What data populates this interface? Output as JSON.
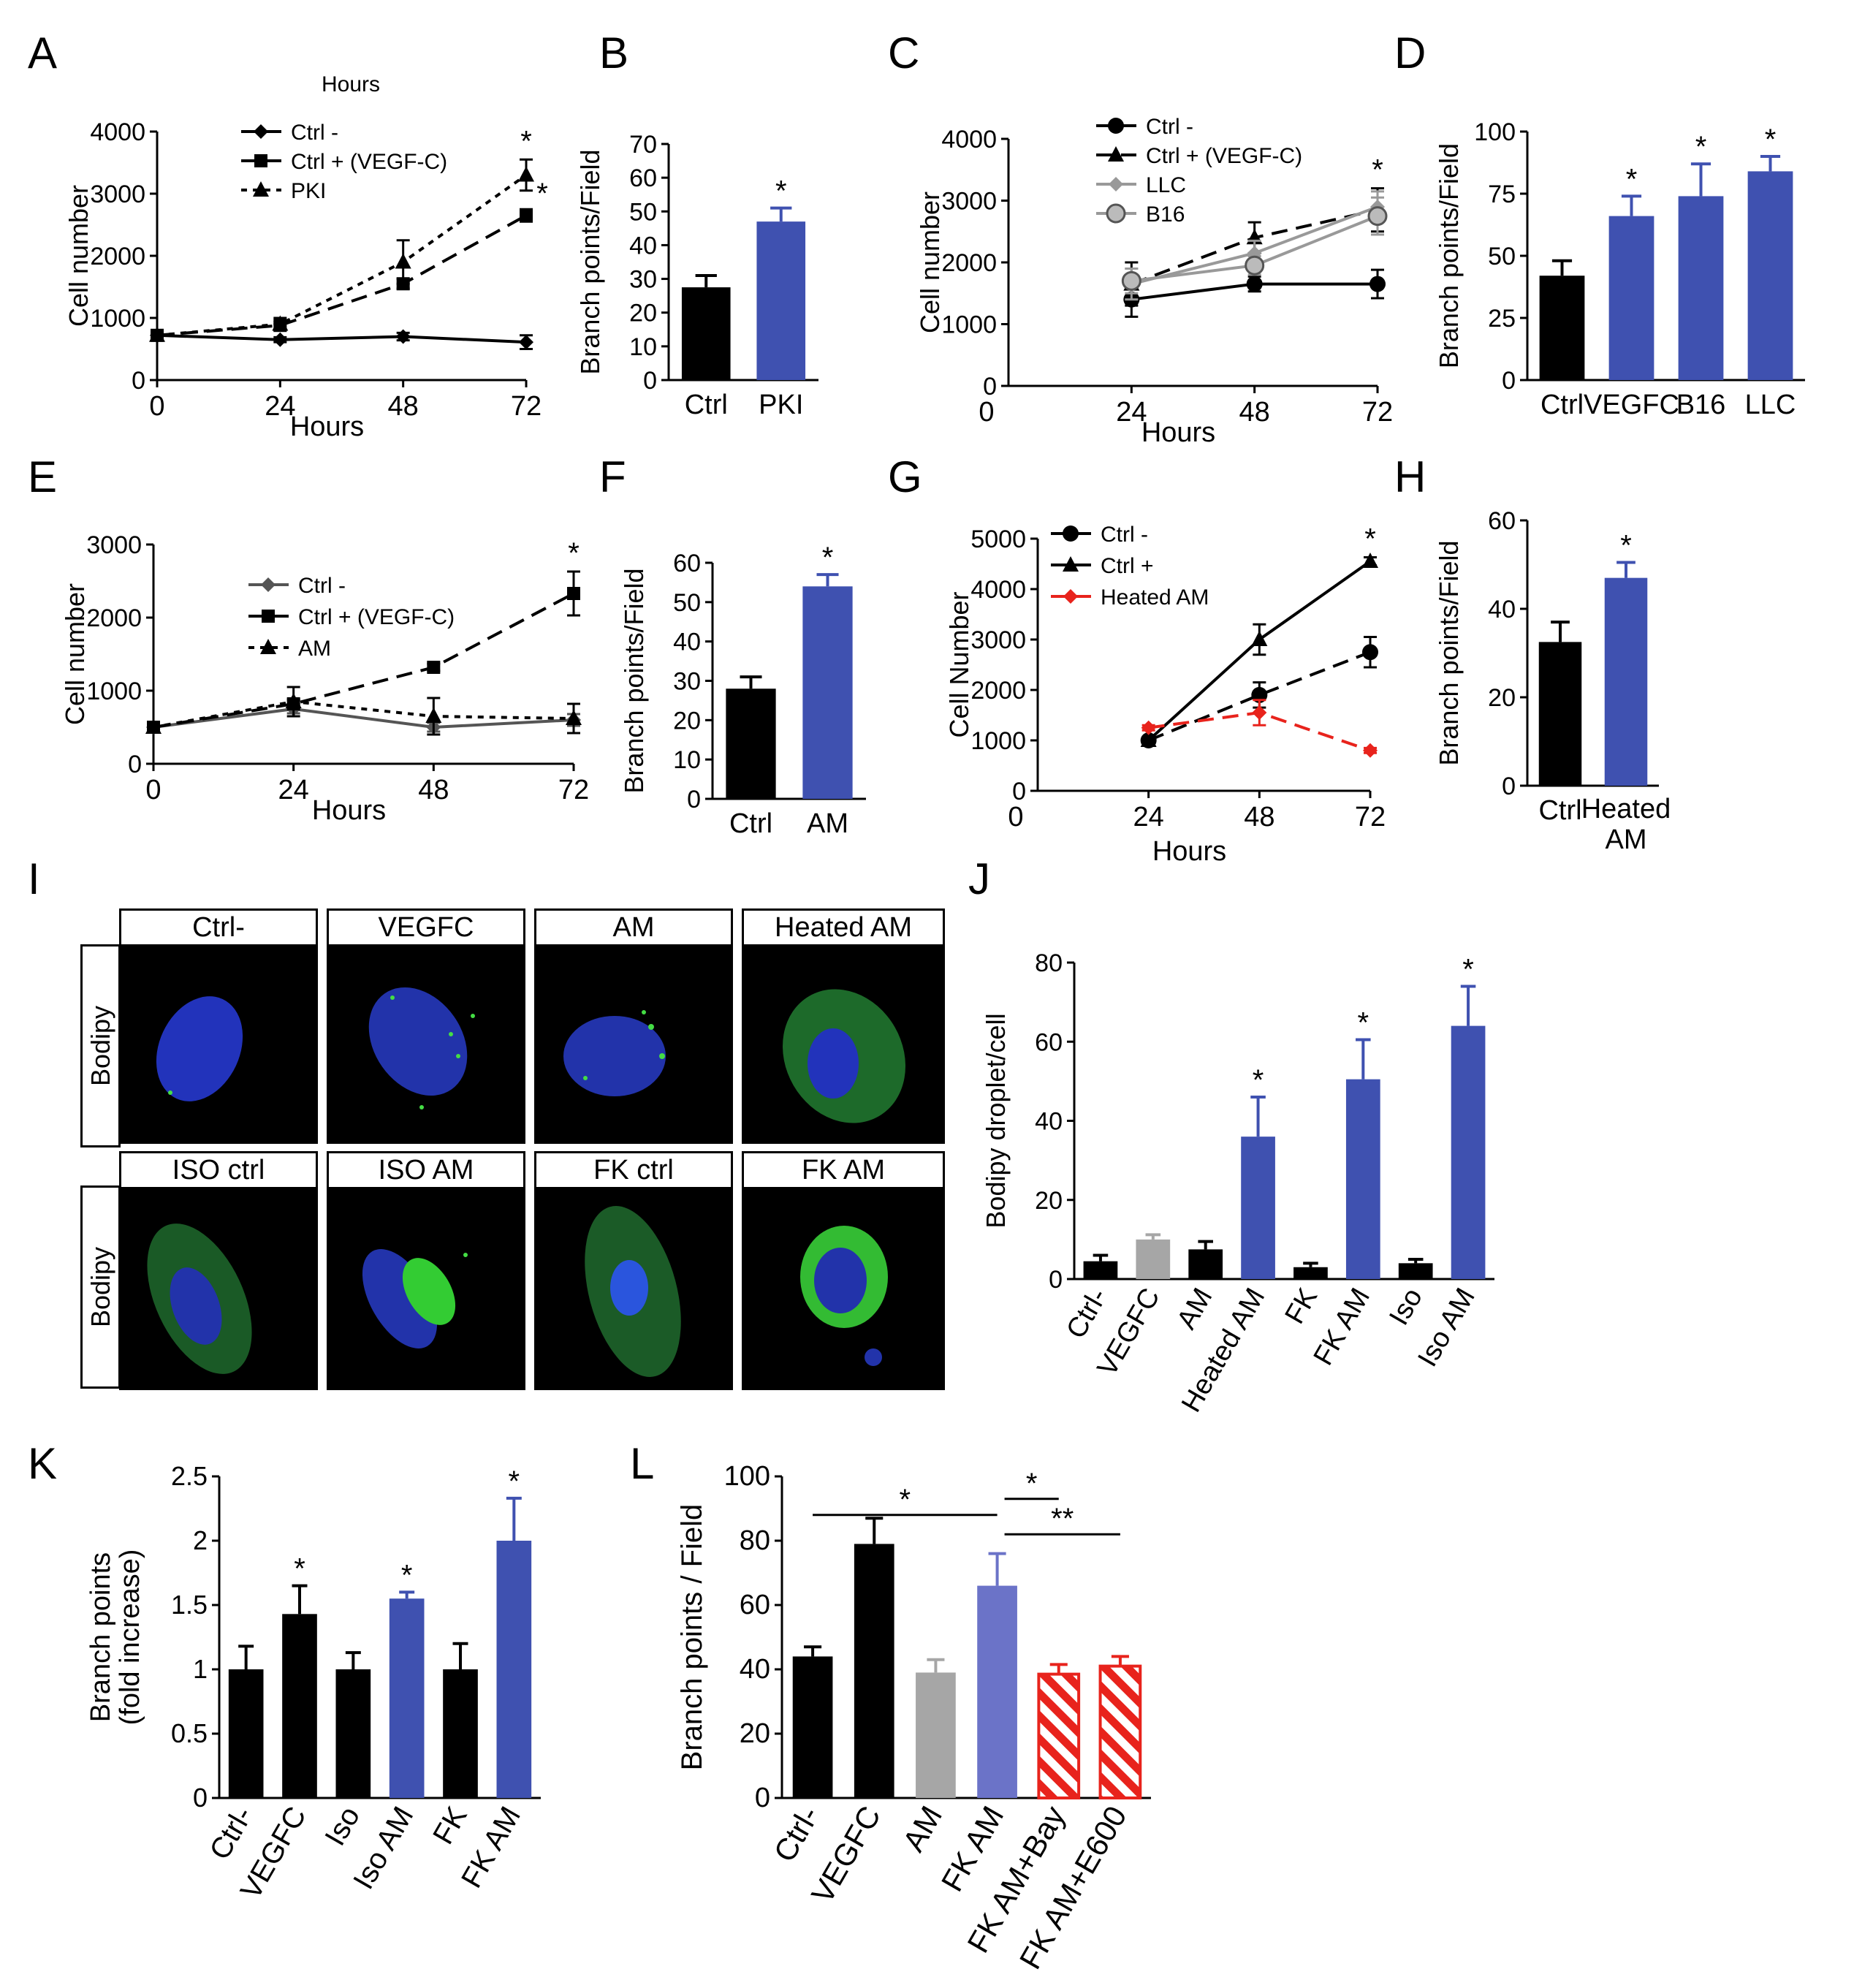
{
  "panel_letters": [
    "A",
    "B",
    "C",
    "D",
    "E",
    "F",
    "G",
    "H",
    "I",
    "J",
    "K",
    "L"
  ],
  "chart_data": [
    {
      "id": "A",
      "type": "line",
      "title": "Hours",
      "xlabel": "Hours",
      "ylabel": "Cell number",
      "x": [
        0,
        24,
        48,
        72
      ],
      "xlim": [
        0,
        72
      ],
      "ylim": [
        0,
        4000
      ],
      "yticks": [
        0,
        1000,
        2000,
        3000,
        4000
      ],
      "legend": "top-left",
      "series": [
        {
          "name": "Ctrl -",
          "values": [
            720,
            650,
            700,
            610
          ],
          "err": [
            40,
            40,
            60,
            110
          ],
          "marker": "diamond",
          "dash": "solid"
        },
        {
          "name": "Ctrl + (VEGF-C)",
          "values": [
            720,
            880,
            1550,
            2650
          ],
          "err": [
            40,
            60,
            80,
            100
          ],
          "marker": "square",
          "dash": "long"
        },
        {
          "name": "PKI",
          "values": [
            720,
            900,
            1900,
            3300
          ],
          "err": [
            40,
            100,
            350,
            250
          ],
          "marker": "triangle",
          "dash": "short"
        }
      ],
      "annotations": [
        "*",
        "*"
      ]
    },
    {
      "id": "B",
      "type": "bar",
      "ylabel": "Branch points/Field",
      "categories": [
        "Ctrl",
        "PKI"
      ],
      "values": [
        27.5,
        47
      ],
      "err": [
        3.5,
        4
      ],
      "ylim": [
        0,
        70
      ],
      "yticks": [
        0,
        10,
        20,
        30,
        40,
        50,
        60,
        70
      ],
      "colors": [
        "#000000",
        "#3f51b0"
      ],
      "annotations": [
        "",
        "*"
      ]
    },
    {
      "id": "C",
      "type": "line",
      "xlabel": "Hours",
      "ylabel": "Cell number",
      "x": [
        24,
        48,
        72
      ],
      "xlim": [
        0,
        72
      ],
      "ylim": [
        0,
        4000
      ],
      "yticks": [
        0,
        1000,
        2000,
        3000,
        4000
      ],
      "legend": "top-left",
      "series": [
        {
          "name": "Ctrl -",
          "values": [
            1400,
            1650,
            1650
          ],
          "err": [
            280,
            120,
            230
          ],
          "marker": "circle",
          "dash": "solid",
          "color": "#000000"
        },
        {
          "name": "Ctrl + (VEGF-C)",
          "values": [
            1650,
            2400,
            2850
          ],
          "err": [
            350,
            250,
            350
          ],
          "marker": "triangle",
          "dash": "long",
          "color": "#000000"
        },
        {
          "name": "LLC",
          "values": [
            1650,
            2150,
            2900
          ],
          "err": [
            250,
            200,
            250
          ],
          "marker": "diamond",
          "dash": "solid",
          "color": "#999999"
        },
        {
          "name": "B16",
          "values": [
            1700,
            1950,
            2750
          ],
          "err": [
            200,
            150,
            300
          ],
          "marker": "circle",
          "dash": "solid",
          "color": "#999999"
        }
      ],
      "annotations": [
        "*"
      ]
    },
    {
      "id": "D",
      "type": "bar",
      "ylabel": "Branch points/Field",
      "categories": [
        "Ctrl",
        "VEGFC",
        "B16",
        "LLC"
      ],
      "values": [
        42,
        66,
        74,
        84
      ],
      "err": [
        6,
        8,
        13,
        6
      ],
      "ylim": [
        0,
        100
      ],
      "yticks": [
        0,
        25,
        50,
        75,
        100
      ],
      "colors": [
        "#000000",
        "#3f51b0",
        "#3f51b0",
        "#3f51b0"
      ],
      "annotations": [
        "",
        "*",
        "*",
        "*"
      ]
    },
    {
      "id": "E",
      "type": "line",
      "xlabel": "Hours",
      "ylabel": "Cell number",
      "x": [
        0,
        24,
        48,
        72
      ],
      "xlim": [
        0,
        72
      ],
      "ylim": [
        0,
        3000
      ],
      "yticks": [
        0,
        1000,
        2000,
        3000
      ],
      "legend": "top-right",
      "series": [
        {
          "name": "Ctrl -",
          "values": [
            500,
            750,
            500,
            600
          ],
          "err": [
            30,
            60,
            60,
            80
          ],
          "marker": "diamond",
          "dash": "solid",
          "color": "#555555"
        },
        {
          "name": "Ctrl + (VEGF-C)",
          "values": [
            500,
            820,
            1320,
            2330
          ],
          "err": [
            30,
            60,
            50,
            300
          ],
          "marker": "square",
          "dash": "long",
          "color": "#000000"
        },
        {
          "name": "AM",
          "values": [
            500,
            850,
            650,
            620
          ],
          "err": [
            30,
            200,
            250,
            200
          ],
          "marker": "triangle",
          "dash": "short",
          "color": "#000000"
        }
      ],
      "annotations": [
        "*"
      ]
    },
    {
      "id": "F",
      "type": "bar",
      "ylabel": "Branch points/Field",
      "categories": [
        "Ctrl",
        "AM"
      ],
      "values": [
        28,
        54
      ],
      "err": [
        3,
        3
      ],
      "ylim": [
        0,
        60
      ],
      "yticks": [
        0,
        10,
        20,
        30,
        40,
        50,
        60
      ],
      "colors": [
        "#000000",
        "#3f51b0"
      ],
      "annotations": [
        "",
        "*"
      ]
    },
    {
      "id": "G",
      "type": "line",
      "xlabel": "Hours",
      "ylabel": "Cell Number",
      "x": [
        24,
        48,
        72
      ],
      "xlim": [
        0,
        72
      ],
      "ylim": [
        0,
        5000
      ],
      "yticks": [
        0,
        1000,
        2000,
        3000,
        4000,
        5000
      ],
      "legend": "top-left",
      "series": [
        {
          "name": "Ctrl -",
          "values": [
            1000,
            1900,
            2750
          ],
          "err": [
            50,
            250,
            300
          ],
          "marker": "circle",
          "dash": "long",
          "color": "#000000"
        },
        {
          "name": "Ctrl +",
          "values": [
            1000,
            3000,
            4550
          ],
          "err": [
            50,
            300,
            80
          ],
          "marker": "triangle",
          "dash": "solid",
          "color": "#000000"
        },
        {
          "name": "Heated AM",
          "values": [
            1250,
            1550,
            800
          ],
          "err": [
            50,
            250,
            50
          ],
          "marker": "diamond",
          "dash": "long",
          "color": "#e8231c"
        }
      ],
      "annotations": [
        "*"
      ]
    },
    {
      "id": "H",
      "type": "bar",
      "ylabel": "Branch points/Field",
      "categories": [
        "Ctrl",
        "Heated AM"
      ],
      "values": [
        32.5,
        47
      ],
      "err": [
        4.5,
        3.5
      ],
      "ylim": [
        0,
        60
      ],
      "yticks": [
        0,
        20,
        40,
        60
      ],
      "colors": [
        "#000000",
        "#3f51b0"
      ],
      "annotations": [
        "",
        "*"
      ]
    },
    {
      "id": "J",
      "type": "bar",
      "ylabel": "Bodipy droplet/cell",
      "categories": [
        "Ctrl-",
        "VEGFC",
        "AM",
        "Heated AM",
        "FK",
        "FK AM",
        "Iso",
        "Iso AM"
      ],
      "values": [
        4.5,
        10,
        7.5,
        36,
        3,
        50.5,
        4,
        64
      ],
      "err": [
        1.5,
        1.2,
        2,
        10,
        1,
        10,
        1,
        10
      ],
      "ylim": [
        0,
        80
      ],
      "yticks": [
        0,
        20,
        40,
        60,
        80
      ],
      "colors": [
        "#000000",
        "#a6a6a6",
        "#000000",
        "#3f51b0",
        "#000000",
        "#3f51b0",
        "#000000",
        "#3f51b0"
      ],
      "annotations": [
        "",
        "",
        "",
        "*",
        "",
        "*",
        "",
        "*"
      ]
    },
    {
      "id": "K",
      "type": "bar",
      "ylabel": "Branch points (fold increase)",
      "categories": [
        "Ctrl-",
        "VEGFC",
        "Iso",
        "Iso AM",
        "FK",
        "FK AM"
      ],
      "values": [
        1,
        1.43,
        1,
        1.55,
        1,
        2
      ],
      "err": [
        0.18,
        0.22,
        0.13,
        0.05,
        0.2,
        0.33
      ],
      "ylim": [
        0,
        2.5
      ],
      "yticks": [
        0,
        0.5,
        1,
        1.5,
        2,
        2.5
      ],
      "colors": [
        "#000000",
        "#000000",
        "#000000",
        "#3f51b0",
        "#000000",
        "#3f51b0"
      ],
      "annotations": [
        "",
        "*",
        "",
        "*",
        "",
        "*"
      ]
    },
    {
      "id": "L",
      "type": "bar",
      "ylabel": "Branch points / Field",
      "categories": [
        "Ctrl-",
        "VEGFC",
        "AM",
        "FK AM",
        "FK AM+Bay",
        "FK AM+E600"
      ],
      "values": [
        44,
        79,
        39,
        66,
        38.5,
        41
      ],
      "err": [
        3,
        8,
        4,
        10,
        3,
        3
      ],
      "ylim": [
        0,
        100
      ],
      "yticks": [
        0,
        20,
        40,
        60,
        80,
        100
      ],
      "colors": [
        "#000000",
        "#000000",
        "#a6a6a6",
        "#6b73c8",
        "#e8231c",
        "#e8231c"
      ],
      "hatched": [
        false,
        false,
        false,
        false,
        true,
        true
      ],
      "significance": [
        {
          "from": 0,
          "to": 3,
          "label": "*"
        },
        {
          "from": 3,
          "to": 4,
          "label": "*"
        },
        {
          "from": 3,
          "to": 5,
          "label": "**"
        }
      ]
    }
  ],
  "panel_I": {
    "row_label": "Bodipy",
    "top_row": [
      "Ctrl-",
      "VEGFC",
      "AM",
      "Heated AM"
    ],
    "bottom_row": [
      "ISO ctrl",
      "ISO  AM",
      "FK ctrl",
      "FK AM"
    ]
  }
}
